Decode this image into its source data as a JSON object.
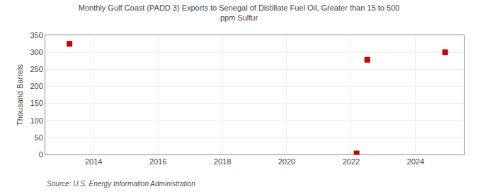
{
  "chart_data": {
    "type": "scatter",
    "title": "Monthly Gulf Coast (PADD 3) Exports to Senegal of Distillate Fuel Oil, Greater than 15 to 500\nppm Sulfur",
    "ylabel": "Thousand Barrels",
    "source": "Source: U.S. Energy Information Administration",
    "x": [
      2013.25,
      2022.17,
      2022.5,
      2024.92
    ],
    "values": [
      325,
      3,
      278,
      300
    ],
    "color": "#cc0000",
    "marker": "square",
    "xlim": [
      2012.5,
      2025.5
    ],
    "ylim": [
      0,
      350
    ],
    "xticks": [
      2014,
      2016,
      2018,
      2020,
      2022,
      2024
    ],
    "yticks": [
      0,
      50,
      100,
      150,
      200,
      250,
      300,
      350
    ],
    "grid": true
  }
}
